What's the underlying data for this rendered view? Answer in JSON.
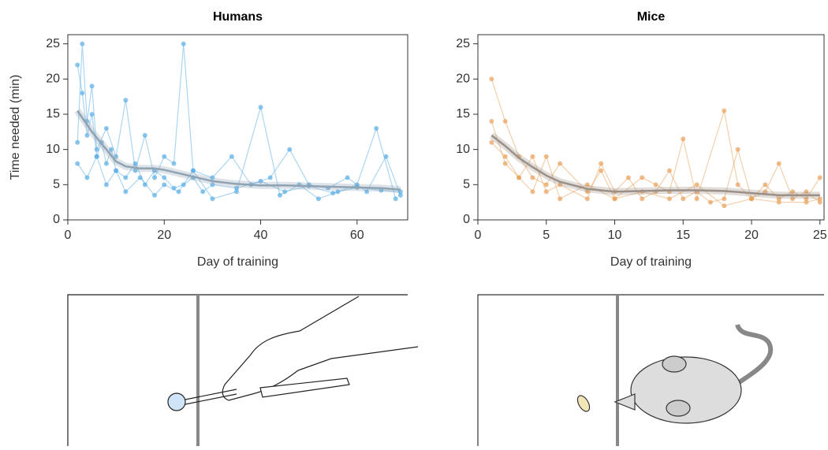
{
  "chart_data": [
    {
      "type": "line",
      "title": "Humans",
      "xlabel": "Day of training",
      "ylabel": "Time needed (min)",
      "xlim": [
        0,
        70.5
      ],
      "ylim": [
        0,
        26.3
      ],
      "xticks": [
        0,
        20,
        40,
        60
      ],
      "yticks": [
        0,
        5,
        10,
        15,
        20,
        25
      ],
      "series": [
        {
          "color": "#5aaee6",
          "x": [
            2,
            3,
            4,
            5,
            6,
            7,
            8,
            9,
            10,
            12,
            14,
            16,
            18,
            20,
            22,
            24,
            26,
            28,
            30,
            35,
            40,
            45,
            50,
            55,
            60,
            65,
            69
          ],
          "values": [
            22,
            18,
            12,
            15,
            9,
            11,
            8,
            10,
            7,
            6,
            8,
            5,
            7,
            6,
            4.5,
            5,
            6,
            4,
            5,
            4.5,
            5.5,
            4,
            4.8,
            3.8,
            4.6,
            4.2,
            4
          ]
        },
        {
          "color": "#5aaee6",
          "x": [
            2,
            3,
            4,
            5,
            6,
            8,
            10,
            12,
            14,
            16,
            18,
            20,
            22,
            24,
            26,
            30,
            34,
            38,
            42,
            46,
            50,
            54,
            58,
            62,
            66,
            69
          ],
          "values": [
            11,
            25,
            14,
            19,
            10,
            13,
            9,
            17,
            7,
            12,
            6,
            9,
            8,
            25,
            7,
            6,
            9,
            5,
            6,
            10,
            5,
            4.5,
            6,
            4,
            9,
            3.5
          ]
        },
        {
          "color": "#5aaee6",
          "x": [
            2,
            4,
            6,
            8,
            10,
            12,
            15,
            18,
            20,
            23,
            26,
            30,
            35,
            40,
            44,
            48,
            52,
            56,
            60,
            64,
            68
          ],
          "values": [
            8,
            6,
            9,
            5,
            7,
            4,
            6,
            3.5,
            5,
            4,
            7,
            3,
            4,
            16,
            3.5,
            5,
            3,
            4,
            5,
            13,
            3
          ]
        },
        {
          "color": "#8fa3b3",
          "x": [
            2,
            5,
            8,
            10,
            12,
            15,
            18,
            20,
            25,
            30,
            35,
            40,
            45,
            50,
            55,
            60,
            65,
            69
          ],
          "values": [
            15.5,
            12.5,
            10,
            8.3,
            7.6,
            7.3,
            7.3,
            7.1,
            6.3,
            5.5,
            5.1,
            4.9,
            4.9,
            4.8,
            4.7,
            4.6,
            4.5,
            4.3
          ]
        }
      ]
    },
    {
      "type": "line",
      "title": "Mice",
      "xlabel": "Day of training",
      "xlim": [
        0,
        25.3
      ],
      "ylim": [
        0,
        26.3
      ],
      "xticks": [
        0,
        5,
        10,
        15,
        20,
        25
      ],
      "yticks": [
        0,
        5,
        10,
        15,
        20,
        25
      ],
      "series": [
        {
          "color": "#e8a15a",
          "x": [
            1,
            2,
            3,
            4,
            5,
            6,
            8,
            9,
            10,
            12,
            13,
            14,
            15,
            16,
            18,
            19,
            20,
            21,
            22,
            23,
            24,
            25
          ],
          "values": [
            20,
            14,
            9,
            6,
            5,
            8,
            4,
            7,
            3,
            6,
            5,
            4,
            11.5,
            3,
            15.5,
            5,
            3,
            4,
            8,
            3,
            4,
            2.5
          ]
        },
        {
          "color": "#e8a15a",
          "x": [
            1,
            2,
            3,
            4,
            5,
            6,
            8,
            9,
            10,
            11,
            12,
            13,
            14,
            15,
            16,
            17,
            18,
            19,
            20,
            21,
            22,
            23,
            24,
            25
          ],
          "values": [
            11,
            9,
            6,
            9,
            4,
            5,
            3,
            8,
            4,
            6,
            3,
            4,
            7,
            3,
            4,
            2.5,
            3,
            10,
            3,
            5,
            3,
            4,
            3,
            6
          ]
        },
        {
          "color": "#e8a15a",
          "x": [
            1,
            2,
            3,
            4,
            5,
            6,
            8,
            10,
            12,
            14,
            16,
            18,
            20,
            22,
            24,
            25
          ],
          "values": [
            14,
            8,
            6,
            4,
            9,
            3,
            5,
            3,
            4,
            3,
            5,
            2,
            3,
            2.5,
            2.5,
            3
          ]
        },
        {
          "color": "#9a9088",
          "x": [
            1,
            2,
            3,
            4,
            5,
            6,
            8,
            10,
            12,
            14,
            16,
            18,
            20,
            22,
            24,
            25
          ],
          "values": [
            12,
            10.5,
            8.8,
            7.5,
            6.3,
            5.4,
            4.4,
            4.0,
            4.1,
            4.2,
            4.2,
            4.1,
            3.8,
            3.5,
            3.5,
            3.5
          ]
        }
      ]
    }
  ]
}
